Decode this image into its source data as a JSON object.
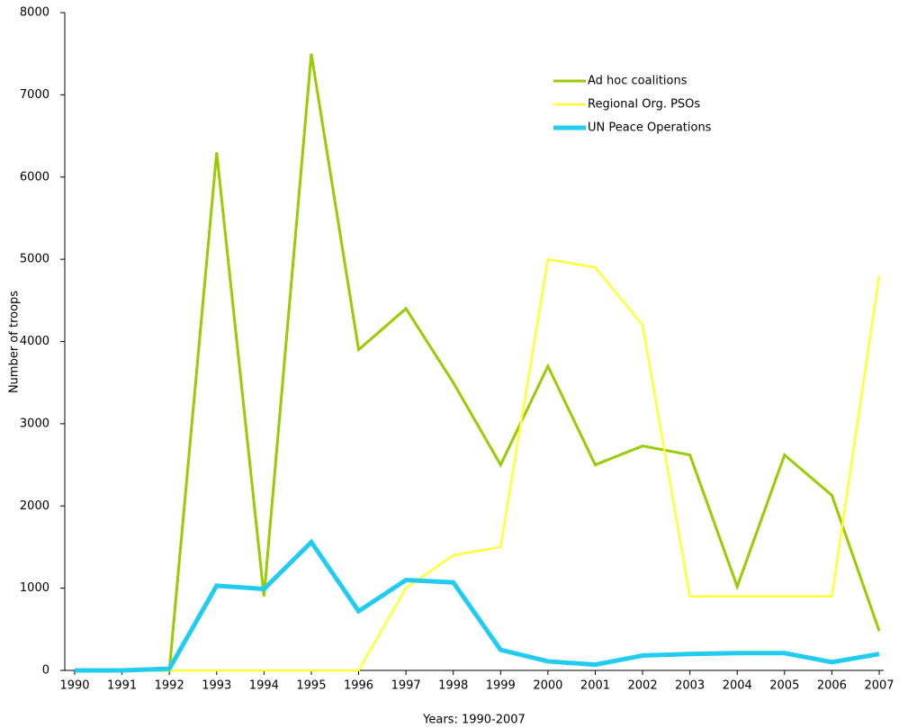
{
  "chart_data": {
    "type": "line",
    "xlabel": "Years: 1990-2007",
    "ylabel": "Number of troops",
    "x": [
      1990,
      1991,
      1992,
      1993,
      1994,
      1995,
      1996,
      1997,
      1998,
      1999,
      2000,
      2001,
      2002,
      2003,
      2004,
      2005,
      2006,
      2007
    ],
    "xlim": [
      1990,
      2007
    ],
    "xticks": [
      1990,
      1991,
      1992,
      1993,
      1994,
      1995,
      1996,
      1997,
      1998,
      1999,
      2000,
      2001,
      2002,
      2003,
      2004,
      2005,
      2006,
      2007
    ],
    "ylim": [
      0,
      8000
    ],
    "yticks": [
      0,
      1000,
      2000,
      3000,
      4000,
      5000,
      6000,
      7000,
      8000
    ],
    "grid": false,
    "legend": "upper right",
    "series": [
      {
        "name": "Ad hoc coalitions",
        "color": "#99cc00",
        "values": [
          0,
          0,
          0,
          6300,
          900,
          7500,
          3900,
          4400,
          3500,
          2500,
          3700,
          2500,
          2730,
          2620,
          1020,
          2620,
          2130,
          480
        ]
      },
      {
        "name": "Regional Org. PSOs",
        "color": "#ffff33",
        "values": [
          0,
          0,
          0,
          0,
          0,
          0,
          0,
          1000,
          1400,
          1500,
          5000,
          4900,
          4200,
          900,
          900,
          900,
          900,
          4800
        ]
      },
      {
        "name": "UN Peace Operations",
        "color": "#22ccf0",
        "values": [
          0,
          0,
          20,
          1030,
          990,
          1560,
          720,
          1100,
          1070,
          250,
          110,
          70,
          180,
          200,
          210,
          210,
          100,
          200
        ]
      }
    ]
  }
}
